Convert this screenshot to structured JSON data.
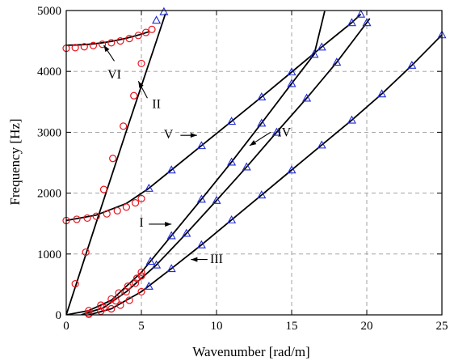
{
  "chart_data": {
    "type": "line",
    "title": "",
    "xlabel": "Wavenumber [rad/m]",
    "ylabel": "Frequency [Hz]",
    "xlim": [
      0,
      25
    ],
    "ylim": [
      0,
      5000
    ],
    "xticks": [
      0,
      5,
      10,
      15,
      20,
      25
    ],
    "yticks": [
      0,
      1000,
      2000,
      3000,
      4000,
      5000
    ],
    "grid": true,
    "marker_colors": {
      "circle": "#e8141c",
      "triangle": "#1f2bd6",
      "line": "#000000"
    },
    "series": [
      {
        "curve": [
          [
            0,
            4430
          ],
          [
            0.5,
            4432
          ],
          [
            1,
            4437
          ],
          [
            1.5,
            4446
          ],
          [
            2,
            4458
          ],
          [
            2.5,
            4474
          ],
          [
            3,
            4494
          ],
          [
            3.5,
            4518
          ],
          [
            4,
            4545
          ],
          [
            4.5,
            4577
          ],
          [
            5,
            4612
          ],
          [
            5.5,
            4652
          ]
        ],
        "circles": [
          [
            0,
            4380
          ],
          [
            0.6,
            4390
          ],
          [
            1.2,
            4405
          ],
          [
            1.8,
            4425
          ],
          [
            2.4,
            4445
          ],
          [
            3.0,
            4470
          ],
          [
            3.6,
            4500
          ],
          [
            4.2,
            4540
          ],
          [
            4.8,
            4590
          ],
          [
            5.3,
            4640
          ],
          [
            5.7,
            4690
          ]
        ],
        "triangles": []
      },
      {
        "curve": [
          [
            0,
            0
          ],
          [
            1,
            760
          ],
          [
            2,
            1520
          ],
          [
            3,
            2270
          ],
          [
            4,
            3020
          ],
          [
            5,
            3760
          ],
          [
            6,
            4500
          ],
          [
            6.6,
            4950
          ]
        ],
        "circles": [
          [
            0.6,
            510
          ],
          [
            1.3,
            1030
          ],
          [
            2.5,
            2060
          ],
          [
            3.1,
            2570
          ],
          [
            3.8,
            3100
          ],
          [
            4.5,
            3600
          ],
          [
            5.0,
            4130
          ]
        ],
        "triangles": [
          [
            6.0,
            4840
          ],
          [
            6.5,
            4980
          ]
        ]
      },
      {
        "curve": [
          [
            0,
            1550
          ],
          [
            2,
            1640
          ],
          [
            4,
            1830
          ],
          [
            5.5,
            2080
          ],
          [
            7,
            2380
          ],
          [
            9,
            2780
          ],
          [
            11,
            3180
          ],
          [
            13,
            3580
          ],
          [
            15,
            3990
          ],
          [
            17,
            4400
          ],
          [
            19,
            4800
          ],
          [
            19.6,
            4940
          ]
        ],
        "circles": [
          [
            0,
            1550
          ],
          [
            0.7,
            1570
          ],
          [
            1.4,
            1590
          ],
          [
            2.0,
            1620
          ],
          [
            2.7,
            1660
          ],
          [
            3.4,
            1710
          ],
          [
            4.0,
            1770
          ],
          [
            4.6,
            1840
          ],
          [
            5.0,
            1910
          ]
        ],
        "triangles": [
          [
            5.5,
            2080
          ],
          [
            7,
            2380
          ],
          [
            9,
            2780
          ],
          [
            11,
            3180
          ],
          [
            13,
            3580
          ],
          [
            15,
            3990
          ],
          [
            17,
            4400
          ],
          [
            19,
            4800
          ],
          [
            19.6,
            4940
          ]
        ]
      },
      {
        "curve": [
          [
            0,
            0
          ],
          [
            1.5,
            70
          ],
          [
            3,
            240
          ],
          [
            5,
            700
          ],
          [
            7,
            1300
          ],
          [
            9,
            1900
          ],
          [
            11,
            2510
          ],
          [
            13,
            3150
          ],
          [
            15,
            3800
          ],
          [
            16.5,
            4280
          ],
          [
            17.2,
            4990
          ]
        ],
        "circles": [
          [
            1.5,
            70
          ],
          [
            2.3,
            160
          ],
          [
            3,
            260
          ],
          [
            3.5,
            360
          ],
          [
            4.1,
            470
          ],
          [
            4.7,
            600
          ],
          [
            5,
            700
          ]
        ],
        "triangles": [
          [
            5.6,
            880
          ],
          [
            7,
            1300
          ],
          [
            9,
            1900
          ],
          [
            11,
            2510
          ],
          [
            13,
            3150
          ],
          [
            15,
            3800
          ],
          [
            16.5,
            4280
          ]
        ]
      },
      {
        "curve": [
          [
            1,
            0
          ],
          [
            2.5,
            120
          ],
          [
            4,
            380
          ],
          [
            6,
            820
          ],
          [
            8,
            1340
          ],
          [
            10,
            1880
          ],
          [
            12,
            2430
          ],
          [
            14,
            3000
          ],
          [
            16,
            3560
          ],
          [
            18,
            4150
          ],
          [
            20,
            4800
          ],
          [
            20.2,
            4870
          ]
        ],
        "circles": [
          [
            1.5,
            20
          ],
          [
            2.5,
            120
          ],
          [
            3.3,
            230
          ],
          [
            4,
            380
          ],
          [
            4.6,
            520
          ],
          [
            5,
            640
          ]
        ],
        "triangles": [
          [
            6,
            820
          ],
          [
            8,
            1340
          ],
          [
            10,
            1880
          ],
          [
            12,
            2430
          ],
          [
            14,
            3000
          ],
          [
            16,
            3560
          ],
          [
            18,
            4150
          ],
          [
            20,
            4800
          ]
        ]
      },
      {
        "curve": [
          [
            1.5,
            0
          ],
          [
            3,
            100
          ],
          [
            5,
            380
          ],
          [
            7,
            760
          ],
          [
            9,
            1150
          ],
          [
            11,
            1560
          ],
          [
            13,
            1970
          ],
          [
            15,
            2380
          ],
          [
            17,
            2790
          ],
          [
            19,
            3200
          ],
          [
            21,
            3630
          ],
          [
            23,
            4100
          ],
          [
            25,
            4600
          ]
        ],
        "circles": [
          [
            1.5,
            10
          ],
          [
            2.3,
            60
          ],
          [
            3,
            100
          ],
          [
            3.6,
            160
          ],
          [
            4.2,
            240
          ],
          [
            5,
            380
          ]
        ],
        "triangles": [
          [
            5.5,
            470
          ],
          [
            7,
            760
          ],
          [
            9,
            1150
          ],
          [
            11,
            1560
          ],
          [
            13,
            1970
          ],
          [
            15,
            2380
          ],
          [
            17,
            2790
          ],
          [
            19,
            3200
          ],
          [
            21,
            3630
          ],
          [
            23,
            4100
          ],
          [
            25,
            4600
          ]
        ]
      }
    ],
    "annotations": [
      {
        "label": "VI",
        "text_xy": [
          3.2,
          3880
        ],
        "arrow_from": [
          3.2,
          4170
        ],
        "arrow_to": [
          2.5,
          4430
        ]
      },
      {
        "label": "II",
        "text_xy": [
          6.0,
          3400
        ],
        "arrow_from": [
          5.4,
          3560
        ],
        "arrow_to": [
          4.8,
          3840
        ]
      },
      {
        "label": "V",
        "text_xy": [
          6.8,
          2900
        ],
        "arrow_from": [
          7.6,
          2950
        ],
        "arrow_to": [
          8.7,
          2950
        ]
      },
      {
        "label": "IV",
        "text_xy": [
          14.5,
          2930
        ],
        "arrow_from": [
          13.6,
          3000
        ],
        "arrow_to": [
          12.2,
          2780
        ]
      },
      {
        "label": "I",
        "text_xy": [
          5.0,
          1450
        ],
        "arrow_from": [
          5.5,
          1490
        ],
        "arrow_to": [
          7.0,
          1490
        ]
      },
      {
        "label": "III",
        "text_xy": [
          10.0,
          850
        ],
        "arrow_from": [
          9.4,
          910
        ],
        "arrow_to": [
          8.3,
          910
        ]
      }
    ]
  }
}
